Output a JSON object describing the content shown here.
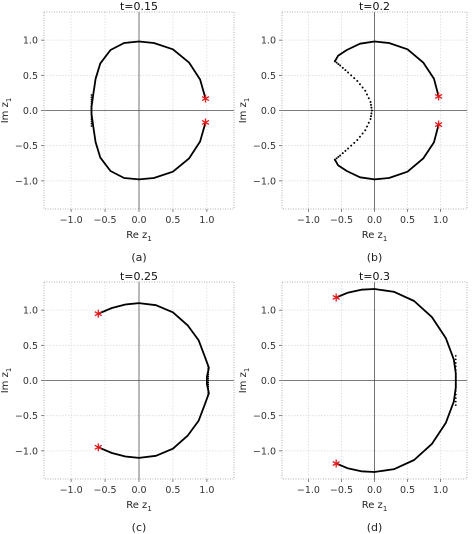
{
  "chart_data": [
    {
      "type": "scatter",
      "title": "t=0.15",
      "caption": "(a)",
      "xlabel": "Re z",
      "xlabel_sub": "1",
      "ylabel": "Im z",
      "ylabel_sub": "1",
      "xlim": [
        -1.4,
        1.4
      ],
      "ylim": [
        -1.4,
        1.4
      ],
      "xticks": [
        -1.0,
        -0.5,
        0.0,
        0.5,
        1.0
      ],
      "xticklabels": [
        "−1.0",
        "−0.5",
        "0.0",
        "0.5",
        "1.0"
      ],
      "yticks": [
        -1.0,
        -0.5,
        0.0,
        0.5,
        1.0
      ],
      "yticklabels": [
        "−1.0",
        "−0.5",
        "0.0",
        "0.5",
        "1.0"
      ],
      "grid": true,
      "series": [
        {
          "points": [
            [
              0.98,
              0.17
            ],
            [
              0.9,
              0.44
            ],
            [
              0.74,
              0.68
            ],
            [
              0.5,
              0.87
            ],
            [
              0.22,
              0.96
            ],
            [
              0.0,
              0.98
            ],
            [
              -0.22,
              0.96
            ],
            [
              -0.42,
              0.86
            ],
            [
              -0.57,
              0.67
            ],
            [
              -0.64,
              0.45
            ],
            [
              -0.67,
              0.25
            ],
            [
              -0.7,
              0.05
            ],
            [
              -0.7,
              -0.05
            ],
            [
              -0.67,
              -0.25
            ],
            [
              -0.64,
              -0.45
            ],
            [
              -0.57,
              -0.67
            ],
            [
              -0.42,
              -0.86
            ],
            [
              -0.22,
              -0.96
            ],
            [
              0.0,
              -0.98
            ],
            [
              0.22,
              -0.96
            ],
            [
              0.5,
              -0.87
            ],
            [
              0.74,
              -0.68
            ],
            [
              0.9,
              -0.44
            ],
            [
              0.98,
              -0.17
            ]
          ],
          "dense": [
            [
              -0.7,
              0.22
            ],
            [
              -0.7,
              -0.22
            ]
          ]
        }
      ],
      "markers": [
        [
          0.98,
          0.17
        ],
        [
          0.98,
          -0.17
        ]
      ]
    },
    {
      "type": "scatter",
      "title": "t=0.2",
      "caption": "(b)",
      "xlabel": "Re z",
      "xlabel_sub": "1",
      "ylabel": "Im z",
      "ylabel_sub": "1",
      "xlim": [
        -1.4,
        1.4
      ],
      "ylim": [
        -1.4,
        1.4
      ],
      "xticks": [
        -1.0,
        -0.5,
        0.0,
        0.5,
        1.0
      ],
      "xticklabels": [
        "−1.0",
        "−0.5",
        "0.0",
        "0.5",
        "1.0"
      ],
      "yticks": [
        -1.0,
        -0.5,
        0.0,
        0.5,
        1.0
      ],
      "yticklabels": [
        "−1.0",
        "−0.5",
        "0.0",
        "0.5",
        "1.0"
      ],
      "grid": true,
      "series": [
        {
          "points": [
            [
              0.97,
              0.2
            ],
            [
              0.9,
              0.45
            ],
            [
              0.74,
              0.68
            ],
            [
              0.5,
              0.87
            ],
            [
              0.22,
              0.96
            ],
            [
              0.0,
              0.98
            ],
            [
              -0.22,
              0.95
            ],
            [
              -0.42,
              0.86
            ],
            [
              -0.55,
              0.78
            ],
            [
              -0.6,
              0.7
            ]
          ],
          "sparse": [
            [
              -0.6,
              0.7
            ],
            [
              -0.52,
              0.64
            ],
            [
              -0.4,
              0.54
            ],
            [
              -0.26,
              0.42
            ],
            [
              -0.14,
              0.28
            ],
            [
              -0.06,
              0.12
            ],
            [
              -0.04,
              0.0
            ],
            [
              -0.06,
              -0.12
            ],
            [
              -0.14,
              -0.28
            ],
            [
              -0.26,
              -0.42
            ],
            [
              -0.4,
              -0.54
            ],
            [
              -0.52,
              -0.64
            ],
            [
              -0.6,
              -0.7
            ]
          ]
        },
        {
          "points": [
            [
              -0.6,
              -0.7
            ],
            [
              -0.55,
              -0.78
            ],
            [
              -0.42,
              -0.86
            ],
            [
              -0.22,
              -0.95
            ],
            [
              0.0,
              -0.98
            ],
            [
              0.22,
              -0.96
            ],
            [
              0.5,
              -0.87
            ],
            [
              0.74,
              -0.68
            ],
            [
              0.9,
              -0.45
            ],
            [
              0.97,
              -0.2
            ]
          ]
        }
      ],
      "markers": [
        [
          0.97,
          0.2
        ],
        [
          0.97,
          -0.2
        ]
      ]
    },
    {
      "type": "scatter",
      "title": "t=0.25",
      "caption": "(c)",
      "xlabel": "Re z",
      "xlabel_sub": "1",
      "ylabel": "Im z",
      "ylabel_sub": "1",
      "xlim": [
        -1.4,
        1.4
      ],
      "ylim": [
        -1.4,
        1.4
      ],
      "xticks": [
        -1.0,
        -0.5,
        0.0,
        0.5,
        1.0
      ],
      "xticklabels": [
        "−1.0",
        "−0.5",
        "0.0",
        "0.5",
        "1.0"
      ],
      "yticks": [
        -1.0,
        -0.5,
        0.0,
        0.5,
        1.0
      ],
      "yticklabels": [
        "−1.0",
        "−0.5",
        "0.0",
        "0.5",
        "1.0"
      ],
      "grid": true,
      "series": [
        {
          "points": [
            [
              -0.6,
              0.95
            ],
            [
              -0.4,
              1.03
            ],
            [
              -0.2,
              1.08
            ],
            [
              0.0,
              1.1
            ],
            [
              0.25,
              1.07
            ],
            [
              0.5,
              0.97
            ],
            [
              0.72,
              0.78
            ],
            [
              0.88,
              0.57
            ],
            [
              0.97,
              0.34
            ],
            [
              1.03,
              0.18
            ],
            [
              1.0,
              0.05
            ],
            [
              1.0,
              -0.05
            ],
            [
              1.03,
              -0.18
            ],
            [
              0.97,
              -0.34
            ],
            [
              0.88,
              -0.57
            ],
            [
              0.72,
              -0.78
            ],
            [
              0.5,
              -0.97
            ],
            [
              0.25,
              -1.07
            ],
            [
              0.0,
              -1.1
            ],
            [
              -0.2,
              -1.08
            ],
            [
              -0.4,
              -1.03
            ],
            [
              -0.6,
              -0.95
            ]
          ],
          "dense": [
            [
              1.02,
              0.2
            ],
            [
              1.02,
              -0.2
            ]
          ]
        }
      ],
      "markers": [
        [
          -0.6,
          0.95
        ],
        [
          -0.6,
          -0.95
        ]
      ]
    },
    {
      "type": "scatter",
      "title": "t=0.3",
      "caption": "(d)",
      "xlabel": "Re z",
      "xlabel_sub": "1",
      "ylabel": "Im z",
      "ylabel_sub": "1",
      "xlim": [
        -1.4,
        1.4
      ],
      "ylim": [
        -1.4,
        1.4
      ],
      "xticks": [
        -1.0,
        -0.5,
        0.0,
        0.5,
        1.0
      ],
      "xticklabels": [
        "−1.0",
        "−0.5",
        "0.0",
        "0.5",
        "1.0"
      ],
      "yticks": [
        -1.0,
        -0.5,
        0.0,
        0.5,
        1.0
      ],
      "yticklabels": [
        "−1.0",
        "−0.5",
        "0.0",
        "0.5",
        "1.0"
      ],
      "grid": true,
      "series": [
        {
          "points": [
            [
              -0.58,
              1.18
            ],
            [
              -0.4,
              1.25
            ],
            [
              -0.2,
              1.29
            ],
            [
              0.0,
              1.3
            ],
            [
              0.3,
              1.26
            ],
            [
              0.6,
              1.13
            ],
            [
              0.87,
              0.9
            ],
            [
              1.08,
              0.6
            ],
            [
              1.2,
              0.3
            ],
            [
              1.23,
              0.1
            ],
            [
              1.23,
              -0.1
            ],
            [
              1.2,
              -0.3
            ],
            [
              1.08,
              -0.6
            ],
            [
              0.87,
              -0.9
            ],
            [
              0.6,
              -1.13
            ],
            [
              0.3,
              -1.26
            ],
            [
              0.0,
              -1.3
            ],
            [
              -0.2,
              -1.29
            ],
            [
              -0.4,
              -1.25
            ],
            [
              -0.58,
              -1.18
            ]
          ],
          "dense": [
            [
              1.23,
              0.35
            ],
            [
              1.23,
              -0.35
            ]
          ]
        }
      ],
      "markers": [
        [
          -0.58,
          1.18
        ],
        [
          -0.58,
          -1.18
        ]
      ]
    }
  ]
}
